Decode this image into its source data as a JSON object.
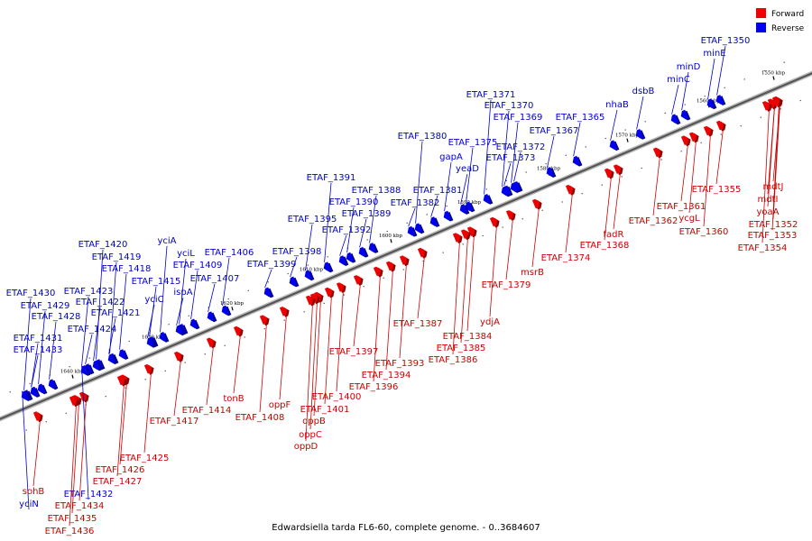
{
  "caption": "Edwardsiella tarda FL6-60, complete genome. - 0..3684607",
  "legend": [
    {
      "label": "Forward",
      "color": "#ee0000"
    },
    {
      "label": "Reverse",
      "color": "#0000ee"
    }
  ],
  "colors": {
    "forward": "#ee0000",
    "reverse": "#0000ee",
    "backbone": "#555555"
  },
  "ticks": [
    "1550 kbp",
    "1560 kbp",
    "1570 kbp",
    "1580 kbp",
    "1590 kbp",
    "1600 kbp",
    "1610 kbp",
    "1620 kbp",
    "1630 kbp",
    "1640 kbp"
  ],
  "reverse_labels": [
    {
      "name": "ETAF_1350",
      "pos": 802
    },
    {
      "name": "minE",
      "pos": 792
    },
    {
      "name": "minD",
      "pos": 763
    },
    {
      "name": "minC",
      "pos": 752
    },
    {
      "name": "dsbB",
      "pos": 713
    },
    {
      "name": "nhaB",
      "pos": 684
    },
    {
      "name": "ETAF_1365",
      "pos": 643
    },
    {
      "name": "ETAF_1367",
      "pos": 614
    },
    {
      "name": "ETAF_1369",
      "pos": 574
    },
    {
      "name": "ETAF_1370",
      "pos": 564
    },
    {
      "name": "ETAF_1371",
      "pos": 544
    },
    {
      "name": "ETAF_1372",
      "pos": 577
    },
    {
      "name": "ETAF_1373",
      "pos": 566
    },
    {
      "name": "ETAF_1375",
      "pos": 524
    },
    {
      "name": "yeaD",
      "pos": 518
    },
    {
      "name": "gapA",
      "pos": 500
    },
    {
      "name": "ETAF_1380",
      "pos": 468
    },
    {
      "name": "ETAF_1381",
      "pos": 485
    },
    {
      "name": "ETAF_1382",
      "pos": 460
    },
    {
      "name": "ETAF_1388",
      "pos": 417
    },
    {
      "name": "ETAF_1389",
      "pos": 406
    },
    {
      "name": "ETAF_1390",
      "pos": 392
    },
    {
      "name": "ETAF_1391",
      "pos": 367
    },
    {
      "name": "ETAF_1392",
      "pos": 384
    },
    {
      "name": "ETAF_1395",
      "pos": 346
    },
    {
      "name": "ETAF_1398",
      "pos": 329
    },
    {
      "name": "ETAF_1399",
      "pos": 301
    },
    {
      "name": "ETAF_1406",
      "pos": 254
    },
    {
      "name": "ETAF_1407",
      "pos": 238
    },
    {
      "name": "ETAF_1409",
      "pos": 219
    },
    {
      "name": "yciL",
      "pos": 206
    },
    {
      "name": "yciA",
      "pos": 185
    },
    {
      "name": "ETAF_1415",
      "pos": 173
    },
    {
      "name": "ispA",
      "pos": 203
    },
    {
      "name": "yciC",
      "pos": 171
    },
    {
      "name": "ETAF_1420",
      "pos": 114
    },
    {
      "name": "ETAF_1419",
      "pos": 129
    },
    {
      "name": "ETAF_1418",
      "pos": 140
    },
    {
      "name": "ETAF_1423",
      "pos": 98
    },
    {
      "name": "ETAF_1422",
      "pos": 111
    },
    {
      "name": "ETAF_1421",
      "pos": 128
    },
    {
      "name": "ETAF_1424",
      "pos": 102
    },
    {
      "name": "ETAF_1430",
      "pos": 34
    },
    {
      "name": "ETAF_1429",
      "pos": 50
    },
    {
      "name": "ETAF_1428",
      "pos": 62
    },
    {
      "name": "ETAF_1431",
      "pos": 42
    },
    {
      "name": "ETAF_1433",
      "pos": 42
    },
    {
      "name": "ETAF_1432",
      "pos": 98
    },
    {
      "name": "yciN",
      "pos": 32
    }
  ],
  "forward_labels": [
    {
      "name": "mdtJ",
      "pos": 857
    },
    {
      "name": "mdtI",
      "pos": 851
    },
    {
      "name": "yoaA",
      "pos": 851
    },
    {
      "name": "ETAF_1352",
      "pos": 857
    },
    {
      "name": "ETAF_1353",
      "pos": 856
    },
    {
      "name": "ETAF_1354",
      "pos": 845
    },
    {
      "name": "ETAF_1355",
      "pos": 794
    },
    {
      "name": "ETAF_1360",
      "pos": 780
    },
    {
      "name": "ycgL",
      "pos": 764
    },
    {
      "name": "ETAF_1361",
      "pos": 755
    },
    {
      "name": "ETAF_1362",
      "pos": 724
    },
    {
      "name": "fadR",
      "pos": 680
    },
    {
      "name": "ETAF_1368",
      "pos": 670
    },
    {
      "name": "ETAF_1374",
      "pos": 627
    },
    {
      "name": "msrB",
      "pos": 590
    },
    {
      "name": "ETAF_1379",
      "pos": 561
    },
    {
      "name": "ydjA",
      "pos": 543
    },
    {
      "name": "ETAF_1384",
      "pos": 518
    },
    {
      "name": "ETAF_1385",
      "pos": 511
    },
    {
      "name": "ETAF_1386",
      "pos": 502
    },
    {
      "name": "ETAF_1387",
      "pos": 463
    },
    {
      "name": "ETAF_1393",
      "pos": 443
    },
    {
      "name": "ETAF_1394",
      "pos": 428
    },
    {
      "name": "ETAF_1396",
      "pos": 414
    },
    {
      "name": "ETAF_1397",
      "pos": 392
    },
    {
      "name": "ETAF_1400",
      "pos": 373
    },
    {
      "name": "ETAF_1401",
      "pos": 360
    },
    {
      "name": "oppF",
      "pos": 310
    },
    {
      "name": "oppB",
      "pos": 348
    },
    {
      "name": "oppC",
      "pos": 344
    },
    {
      "name": "oppD",
      "pos": 339
    },
    {
      "name": "ETAF_1408",
      "pos": 288
    },
    {
      "name": "tonB",
      "pos": 259
    },
    {
      "name": "ETAF_1414",
      "pos": 229
    },
    {
      "name": "ETAF_1417",
      "pos": 193
    },
    {
      "name": "ETAF_1425",
      "pos": 160
    },
    {
      "name": "ETAF_1426",
      "pos": 133
    },
    {
      "name": "ETAF_1427",
      "pos": 130
    },
    {
      "name": "sohB",
      "pos": 37
    },
    {
      "name": "ETAF_1434",
      "pos": 88
    },
    {
      "name": "ETAF_1435",
      "pos": 80
    },
    {
      "name": "ETAF_1436",
      "pos": 77
    }
  ]
}
